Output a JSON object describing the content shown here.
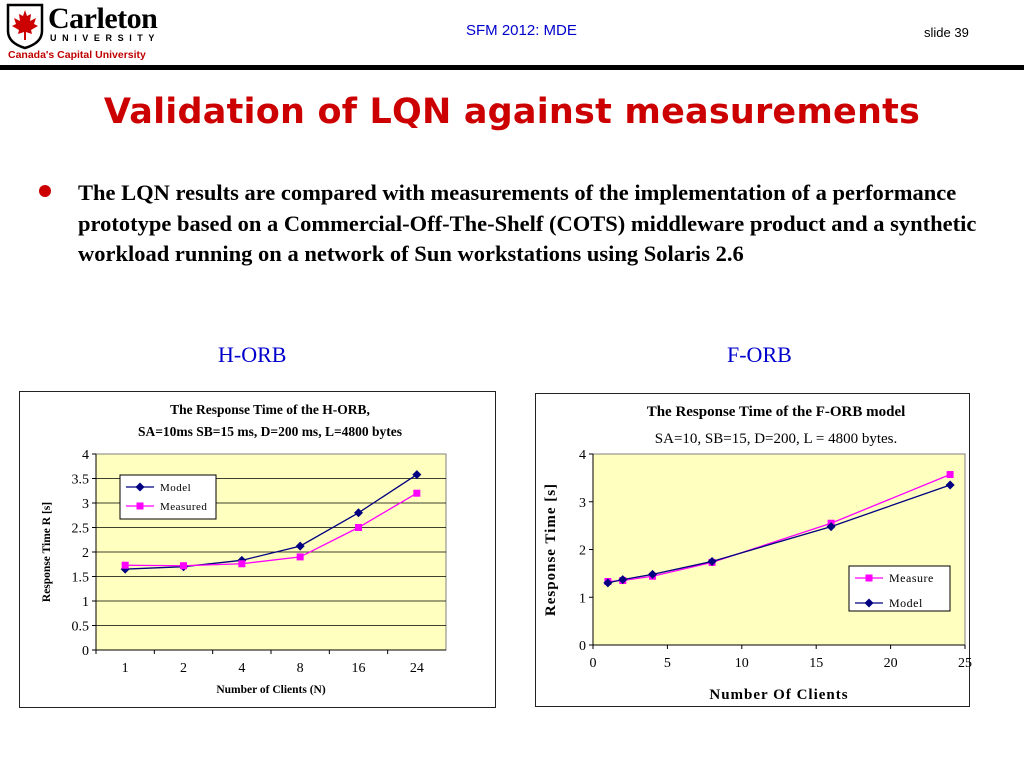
{
  "header": {
    "logo": {
      "name": "Carleton",
      "sub": "UNIVERSITY",
      "tagline": "Canada's Capital University",
      "colors": {
        "red": "#cc0000"
      }
    },
    "title": "SFM 2012: MDE",
    "slide_number": "slide 39"
  },
  "slide": {
    "title": "Validation of LQN against measurements",
    "bullet_text": "The LQN results are compared with measurements of the implementation of a performance prototype based on a Commercial-Off-The-Shelf (COTS) middleware product and a synthetic workload running on a network of Sun workstations using Solaris 2.6"
  },
  "captions": {
    "left": "H-ORB",
    "right": "F-ORB"
  },
  "chart_data": [
    {
      "type": "line",
      "title": "The Response Time of the H-ORB,",
      "subtitle": "SA=10ms SB=15 ms, D=200 ms, L=4800 bytes",
      "xlabel": "Number of Clients (N)",
      "ylabel": "Response Time R [s]",
      "categories": [
        "1",
        "2",
        "4",
        "8",
        "16",
        "24"
      ],
      "ylim": [
        0,
        4
      ],
      "yticks": [
        "0",
        "0.5",
        "1",
        "1.5",
        "2",
        "2.5",
        "3",
        "3.5",
        "4"
      ],
      "grid": true,
      "legend_position": "top-left",
      "series": [
        {
          "name": "Model",
          "values": [
            1.65,
            1.7,
            1.83,
            2.12,
            2.8,
            3.58
          ],
          "color": "#000080",
          "marker": "diamond"
        },
        {
          "name": "Measured",
          "values": [
            1.73,
            1.72,
            1.76,
            1.9,
            2.5,
            3.2
          ],
          "color": "#ff00ff",
          "marker": "square"
        }
      ],
      "colors": {
        "plot_bg": "#ffffc0"
      }
    },
    {
      "type": "line",
      "title": "The Response Time of the F-ORB model",
      "subtitle": "SA=10, SB=15, D=200, L = 4800 bytes.",
      "xlabel": "Number Of Clients",
      "ylabel": "Response Time [s]",
      "xlim": [
        0,
        25
      ],
      "xticks": [
        "0",
        "5",
        "10",
        "15",
        "20",
        "25"
      ],
      "ylim": [
        0,
        4
      ],
      "yticks": [
        "0",
        "1",
        "2",
        "3",
        "4"
      ],
      "grid": false,
      "legend_position": "bottom-right",
      "series": [
        {
          "name": "Measure",
          "x": [
            1,
            2,
            4,
            8,
            16,
            24
          ],
          "values": [
            1.33,
            1.35,
            1.44,
            1.73,
            2.55,
            3.57
          ],
          "color": "#ff00ff",
          "marker": "square"
        },
        {
          "name": "Model",
          "x": [
            1,
            2,
            4,
            8,
            16,
            24
          ],
          "values": [
            1.3,
            1.37,
            1.48,
            1.75,
            2.48,
            3.35
          ],
          "color": "#000080",
          "marker": "diamond"
        }
      ],
      "colors": {
        "plot_bg": "#ffffc0"
      }
    }
  ]
}
